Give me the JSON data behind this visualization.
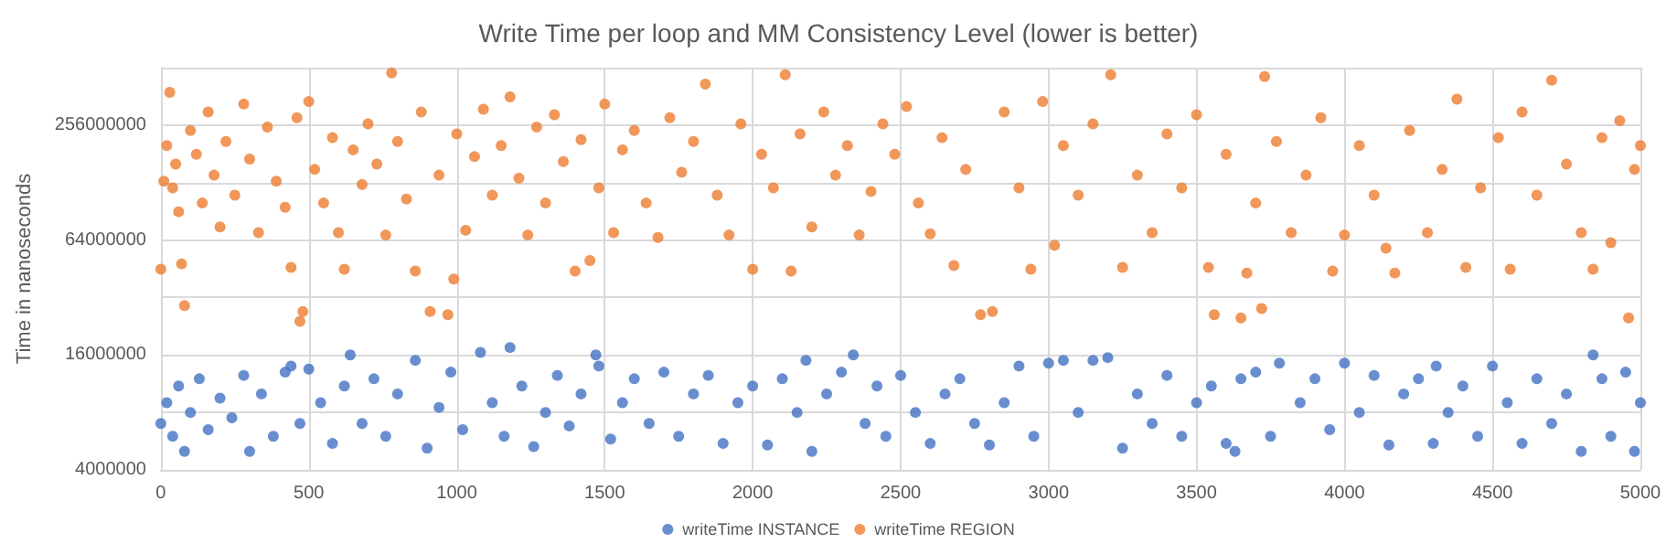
{
  "chart_data": {
    "type": "scatter",
    "title": "Write Time per loop and MM Consistency Level (lower is better)",
    "ylabel": "Time in nanoseconds",
    "log": "y",
    "grid": true,
    "legend": "bottom",
    "marker": "circle",
    "xlim": [
      0,
      5000
    ],
    "xticks": [
      0,
      500,
      1000,
      1500,
      2000,
      2500,
      3000,
      3500,
      4000,
      4500,
      5000
    ],
    "ylim": [
      4000000,
      512000000
    ],
    "yticks": [
      4000000,
      {
        "value": 8000000,
        "label": null
      },
      16000000,
      {
        "value": 32000000,
        "label": null
      },
      64000000,
      {
        "value": 128000000,
        "label": null
      },
      256000000,
      {
        "value": 512000000,
        "label": null
      }
    ],
    "series": [
      {
        "name": "writeTime INSTANCE",
        "color": "#4472c4",
        "x": [
          0,
          20,
          40,
          60,
          80,
          100,
          130,
          160,
          200,
          240,
          280,
          300,
          340,
          380,
          420,
          440,
          470,
          500,
          540,
          580,
          620,
          640,
          680,
          720,
          760,
          800,
          860,
          900,
          940,
          980,
          1020,
          1080,
          1120,
          1160,
          1180,
          1220,
          1260,
          1300,
          1340,
          1380,
          1420,
          1470,
          1480,
          1520,
          1560,
          1600,
          1650,
          1700,
          1750,
          1800,
          1850,
          1900,
          1950,
          2000,
          2050,
          2100,
          2150,
          2180,
          2200,
          2250,
          2300,
          2340,
          2380,
          2420,
          2450,
          2500,
          2550,
          2600,
          2650,
          2700,
          2750,
          2800,
          2850,
          2900,
          2950,
          3000,
          3050,
          3100,
          3150,
          3200,
          3250,
          3300,
          3350,
          3400,
          3450,
          3500,
          3550,
          3600,
          3630,
          3650,
          3700,
          3750,
          3780,
          3850,
          3900,
          3950,
          4000,
          4050,
          4100,
          4150,
          4200,
          4250,
          4300,
          4310,
          4350,
          4400,
          4450,
          4500,
          4550,
          4600,
          4650,
          4700,
          4750,
          4800,
          4840,
          4870,
          4900,
          4950,
          4980,
          5000
        ],
        "values": [
          7000000,
          9000000,
          6000000,
          11000000,
          5000000,
          8000000,
          12000000,
          6500000,
          9500000,
          7500000,
          12500000,
          5000000,
          10000000,
          6000000,
          13000000,
          14000000,
          7000000,
          13500000,
          9000000,
          5500000,
          11000000,
          16000000,
          7000000,
          12000000,
          6000000,
          10000000,
          15000000,
          5200000,
          8500000,
          13000000,
          6500000,
          16500000,
          9000000,
          6000000,
          17500000,
          11000000,
          5300000,
          8000000,
          12500000,
          6800000,
          10000000,
          16000000,
          14000000,
          5800000,
          9000000,
          12000000,
          7000000,
          13000000,
          6000000,
          10000000,
          12500000,
          5500000,
          9000000,
          11000000,
          5400000,
          12000000,
          8000000,
          15000000,
          5000000,
          10000000,
          13000000,
          16000000,
          7000000,
          11000000,
          6000000,
          12500000,
          8000000,
          5500000,
          10000000,
          12000000,
          7000000,
          5400000,
          9000000,
          14000000,
          6000000,
          14500000,
          15000000,
          8000000,
          15000000,
          15500000,
          5200000,
          10000000,
          7000000,
          12500000,
          6000000,
          9000000,
          11000000,
          5500000,
          5000000,
          12000000,
          13000000,
          6000000,
          14500000,
          9000000,
          12000000,
          6500000,
          14500000,
          8000000,
          12500000,
          5400000,
          10000000,
          12000000,
          5500000,
          14000000,
          8000000,
          11000000,
          6000000,
          14000000,
          9000000,
          5500000,
          12000000,
          7000000,
          10000000,
          5000000,
          16000000,
          12000000,
          6000000,
          13000000,
          5000000,
          9000000
        ]
      },
      {
        "name": "writeTime REGION",
        "color": "#ed7d31",
        "x": [
          0,
          10,
          20,
          30,
          40,
          50,
          60,
          70,
          80,
          100,
          120,
          140,
          160,
          180,
          200,
          220,
          250,
          280,
          300,
          330,
          360,
          390,
          420,
          440,
          460,
          470,
          480,
          500,
          520,
          550,
          580,
          600,
          620,
          650,
          680,
          700,
          730,
          760,
          780,
          800,
          830,
          860,
          880,
          910,
          940,
          970,
          990,
          1000,
          1030,
          1060,
          1090,
          1120,
          1150,
          1180,
          1210,
          1240,
          1270,
          1300,
          1330,
          1360,
          1400,
          1420,
          1450,
          1480,
          1500,
          1530,
          1560,
          1600,
          1640,
          1680,
          1720,
          1760,
          1800,
          1840,
          1880,
          1920,
          1960,
          2000,
          2030,
          2070,
          2110,
          2130,
          2160,
          2200,
          2240,
          2280,
          2320,
          2360,
          2400,
          2440,
          2480,
          2520,
          2560,
          2600,
          2640,
          2680,
          2720,
          2770,
          2810,
          2850,
          2900,
          2940,
          2980,
          3020,
          3050,
          3100,
          3150,
          3210,
          3250,
          3300,
          3350,
          3400,
          3450,
          3500,
          3540,
          3560,
          3600,
          3650,
          3670,
          3700,
          3720,
          3730,
          3770,
          3820,
          3870,
          3920,
          3960,
          4000,
          4050,
          4100,
          4140,
          4170,
          4220,
          4280,
          4330,
          4380,
          4410,
          4460,
          4520,
          4560,
          4600,
          4650,
          4700,
          4750,
          4800,
          4840,
          4870,
          4900,
          4930,
          4960,
          4980,
          5000
        ],
        "values": [
          45000000,
          130000000,
          200000000,
          380000000,
          120000000,
          160000000,
          90000000,
          48000000,
          29000000,
          240000000,
          180000000,
          100000000,
          300000000,
          140000000,
          75000000,
          210000000,
          110000000,
          330000000,
          170000000,
          70000000,
          250000000,
          130000000,
          95000000,
          46000000,
          280000000,
          24000000,
          27000000,
          340000000,
          150000000,
          100000000,
          220000000,
          70000000,
          45000000,
          190000000,
          125000000,
          260000000,
          160000000,
          68000000,
          480000000,
          210000000,
          105000000,
          44000000,
          300000000,
          27000000,
          140000000,
          26000000,
          40000000,
          230000000,
          72000000,
          175000000,
          310000000,
          110000000,
          200000000,
          360000000,
          135000000,
          68000000,
          250000000,
          100000000,
          290000000,
          165000000,
          44000000,
          215000000,
          50000000,
          120000000,
          330000000,
          70000000,
          190000000,
          240000000,
          100000000,
          66000000,
          280000000,
          145000000,
          210000000,
          420000000,
          110000000,
          68000000,
          260000000,
          45000000,
          180000000,
          120000000,
          470000000,
          44000000,
          230000000,
          75000000,
          300000000,
          140000000,
          200000000,
          68000000,
          115000000,
          260000000,
          180000000,
          320000000,
          100000000,
          69000000,
          220000000,
          47000000,
          150000000,
          26000000,
          27000000,
          300000000,
          120000000,
          45000000,
          340000000,
          60000000,
          200000000,
          110000000,
          260000000,
          470000000,
          46000000,
          140000000,
          70000000,
          230000000,
          120000000,
          290000000,
          46000000,
          26000000,
          180000000,
          25000000,
          43000000,
          100000000,
          28000000,
          460000000,
          210000000,
          70000000,
          140000000,
          280000000,
          44000000,
          68000000,
          200000000,
          110000000,
          58000000,
          43000000,
          240000000,
          70000000,
          150000000,
          350000000,
          46000000,
          120000000,
          220000000,
          45000000,
          300000000,
          110000000,
          440000000,
          160000000,
          70000000,
          45000000,
          220000000,
          62000000,
          270000000,
          25000000,
          150000000,
          200000000
        ]
      }
    ]
  }
}
